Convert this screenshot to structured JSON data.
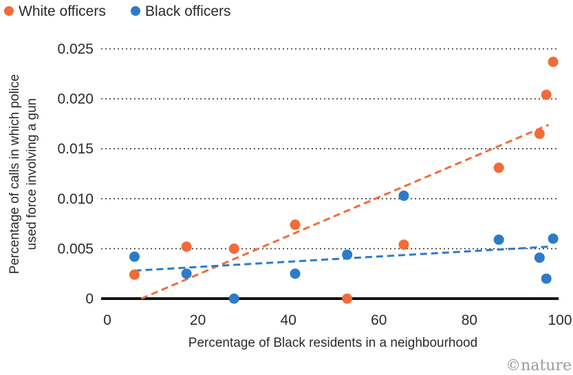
{
  "chart_data": {
    "type": "scatter",
    "xlabel": "Percentage of Black residents in a neighbourhood",
    "ylabel": [
      "Percentage of calls in which police",
      "used force involving a gun"
    ],
    "xlim": [
      0,
      100
    ],
    "ylim": [
      0,
      0.025
    ],
    "x_ticks": [
      0,
      20,
      40,
      60,
      80,
      100
    ],
    "x_tick_labels": [
      "0",
      "20",
      "40",
      "60",
      "80",
      "100"
    ],
    "y_ticks": [
      0,
      0.005,
      0.01,
      0.015,
      0.02,
      0.025
    ],
    "y_tick_labels": [
      "0",
      "0.005",
      "0.010",
      "0.015",
      "0.020",
      "0.025"
    ],
    "grid": "horizontal-dotted",
    "legend_position": "top-left",
    "series": [
      {
        "name": "White officers",
        "color": "#f26b38",
        "points": [
          {
            "x": 6,
            "y": 0.0024
          },
          {
            "x": 17.5,
            "y": 0.0052
          },
          {
            "x": 28,
            "y": 0.005
          },
          {
            "x": 41.5,
            "y": 0.0074
          },
          {
            "x": 53,
            "y": 0.0
          },
          {
            "x": 65.5,
            "y": 0.0054
          },
          {
            "x": 86.5,
            "y": 0.0131
          },
          {
            "x": 95.5,
            "y": 0.0165
          },
          {
            "x": 97,
            "y": 0.0204
          },
          {
            "x": 98.5,
            "y": 0.0237
          }
        ],
        "trend": {
          "x": [
            7.5,
            97.5
          ],
          "y": [
            0.0,
            0.0174
          ]
        }
      },
      {
        "name": "Black officers",
        "color": "#2c7bc8",
        "points": [
          {
            "x": 6,
            "y": 0.0042
          },
          {
            "x": 17.5,
            "y": 0.0025
          },
          {
            "x": 28,
            "y": 0.0
          },
          {
            "x": 41.5,
            "y": 0.0025
          },
          {
            "x": 53,
            "y": 0.0044
          },
          {
            "x": 65.5,
            "y": 0.0103
          },
          {
            "x": 86.5,
            "y": 0.0059
          },
          {
            "x": 95.5,
            "y": 0.0041
          },
          {
            "x": 97,
            "y": 0.002
          },
          {
            "x": 98.5,
            "y": 0.006
          }
        ],
        "trend": {
          "x": [
            6,
            97.5
          ],
          "y": [
            0.0028,
            0.0052
          ]
        }
      }
    ],
    "credit": "©nature"
  }
}
